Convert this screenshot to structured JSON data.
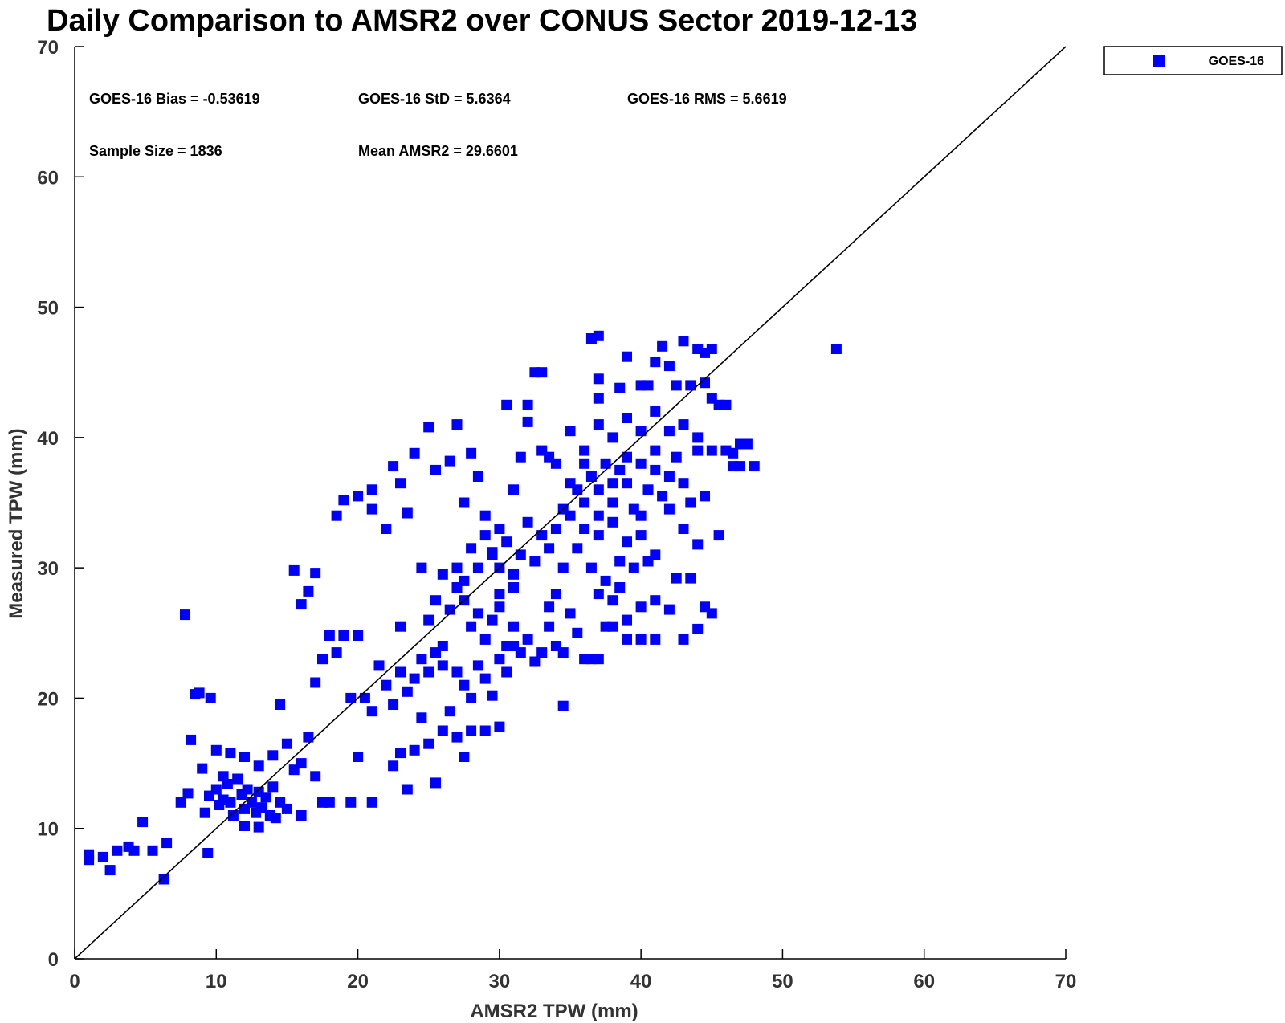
{
  "chart_data": {
    "type": "scatter",
    "title": "Daily Comparison to AMSR2 over CONUS Sector 2019-12-13",
    "xlabel": "AMSR2 TPW (mm)",
    "ylabel": "Measured TPW (mm)",
    "xlim": [
      0,
      70
    ],
    "ylim": [
      0,
      70
    ],
    "xticks": [
      0,
      10,
      20,
      30,
      40,
      50,
      60,
      70
    ],
    "yticks": [
      0,
      10,
      20,
      30,
      40,
      50,
      60,
      70
    ],
    "grid": false,
    "legend_position": "top-right",
    "reference_line": {
      "x": [
        0,
        70
      ],
      "y": [
        0,
        70
      ]
    },
    "stats": {
      "bias": "GOES-16 Bias = -0.53619",
      "std": "GOES-16 StD = 5.6364",
      "rms": "GOES-16 RMS = 5.6619",
      "sample_size": "Sample Size = 1836",
      "mean": "Mean AMSR2 = 29.6601"
    },
    "series": [
      {
        "name": "GOES-16",
        "color": "#0000ff",
        "marker": "square",
        "points": [
          [
            1,
            7.6
          ],
          [
            1,
            8
          ],
          [
            2,
            7.8
          ],
          [
            2.5,
            6.8
          ],
          [
            3,
            8.3
          ],
          [
            3.8,
            8.6
          ],
          [
            4.2,
            8.3
          ],
          [
            4.8,
            10.5
          ],
          [
            5.5,
            8.3
          ],
          [
            6.3,
            6.1
          ],
          [
            6.5,
            8.9
          ],
          [
            7.5,
            12
          ],
          [
            7.8,
            26.4
          ],
          [
            8,
            12.7
          ],
          [
            8.2,
            16.8
          ],
          [
            8.5,
            20.3
          ],
          [
            8.8,
            20.4
          ],
          [
            9,
            14.6
          ],
          [
            9.2,
            11.2
          ],
          [
            9.4,
            8.1
          ],
          [
            9.6,
            20
          ],
          [
            10,
            16
          ],
          [
            10.5,
            14
          ],
          [
            9.5,
            12.5
          ],
          [
            10,
            13
          ],
          [
            10.2,
            11.8
          ],
          [
            10.5,
            12.2
          ],
          [
            10.8,
            13.4
          ],
          [
            11,
            12
          ],
          [
            11.2,
            11
          ],
          [
            11.5,
            13.8
          ],
          [
            11.8,
            12.6
          ],
          [
            12,
            11.5
          ],
          [
            12.2,
            13
          ],
          [
            12.5,
            12
          ],
          [
            12.8,
            11.2
          ],
          [
            13,
            12.8
          ],
          [
            13.2,
            11.6
          ],
          [
            13.5,
            12.4
          ],
          [
            13.8,
            11
          ],
          [
            14,
            13.2
          ],
          [
            14.2,
            10.8
          ],
          [
            14.5,
            12
          ],
          [
            11,
            15.8
          ],
          [
            12,
            15.5
          ],
          [
            13,
            14.8
          ],
          [
            14,
            15.6
          ],
          [
            14.5,
            19.5
          ],
          [
            15,
            16.5
          ],
          [
            15.5,
            14.5
          ],
          [
            16,
            15
          ],
          [
            16.5,
            17
          ],
          [
            17,
            14
          ],
          [
            17.5,
            12
          ],
          [
            18,
            12
          ],
          [
            19.5,
            12
          ],
          [
            21,
            12
          ],
          [
            12,
            10.2
          ],
          [
            13,
            10.1
          ],
          [
            15,
            11.5
          ],
          [
            16,
            11
          ],
          [
            15.5,
            29.8
          ],
          [
            16,
            27.2
          ],
          [
            16.5,
            28.2
          ],
          [
            17,
            29.6
          ],
          [
            17,
            21.2
          ],
          [
            17.5,
            23
          ],
          [
            18,
            24.8
          ],
          [
            18.5,
            23.5
          ],
          [
            19,
            24.8
          ],
          [
            20,
            24.8
          ],
          [
            19.5,
            20
          ],
          [
            20,
            15.5
          ],
          [
            18.5,
            34
          ],
          [
            19,
            35.2
          ],
          [
            20,
            35.5
          ],
          [
            21,
            34.5
          ],
          [
            21,
            36
          ],
          [
            20.5,
            20
          ],
          [
            21,
            19
          ],
          [
            21.5,
            22.5
          ],
          [
            22,
            21
          ],
          [
            22.5,
            19.5
          ],
          [
            23,
            22
          ],
          [
            23.5,
            20.5
          ],
          [
            24,
            21.5
          ],
          [
            24.5,
            23
          ],
          [
            25,
            22
          ],
          [
            25.5,
            23.5
          ],
          [
            26,
            22.5
          ],
          [
            23,
            25.5
          ],
          [
            22.5,
            14.8
          ],
          [
            23,
            15.8
          ],
          [
            23.5,
            13
          ],
          [
            24,
            16
          ],
          [
            24.5,
            18.5
          ],
          [
            25,
            16.5
          ],
          [
            25.5,
            13.5
          ],
          [
            26,
            17.5
          ],
          [
            26.5,
            19
          ],
          [
            27,
            17
          ],
          [
            27.5,
            15.5
          ],
          [
            28,
            17.5
          ],
          [
            29,
            17.5
          ],
          [
            30,
            17.8
          ],
          [
            22,
            33
          ],
          [
            22.5,
            37.8
          ],
          [
            23,
            36.5
          ],
          [
            23.5,
            34.2
          ],
          [
            24,
            38.8
          ],
          [
            24.5,
            30
          ],
          [
            25,
            40.8
          ],
          [
            25.5,
            37.5
          ],
          [
            26,
            29.5
          ],
          [
            26.5,
            38.2
          ],
          [
            27,
            41
          ],
          [
            27.5,
            35
          ],
          [
            28,
            38.8
          ],
          [
            28.5,
            37
          ],
          [
            29,
            34
          ],
          [
            29.5,
            31
          ],
          [
            30,
            33
          ],
          [
            30.5,
            42.5
          ],
          [
            31,
            36
          ],
          [
            31.5,
            38.5
          ],
          [
            32,
            41.2
          ],
          [
            32.5,
            45
          ],
          [
            33,
            39
          ],
          [
            33.5,
            38.5
          ],
          [
            25,
            26
          ],
          [
            25.5,
            27.5
          ],
          [
            26,
            24
          ],
          [
            26.5,
            26.8
          ],
          [
            27,
            28.5
          ],
          [
            27.5,
            27.5
          ],
          [
            28,
            25.5
          ],
          [
            28.5,
            26.5
          ],
          [
            29,
            24.5
          ],
          [
            29.5,
            26
          ],
          [
            30,
            27
          ],
          [
            30.5,
            24
          ],
          [
            31,
            25.5
          ],
          [
            31.5,
            23.5
          ],
          [
            32,
            24.5
          ],
          [
            32.5,
            22.8
          ],
          [
            33,
            23.5
          ],
          [
            33.5,
            25.5
          ],
          [
            34,
            24
          ],
          [
            34.5,
            23.5
          ],
          [
            35,
            26.5
          ],
          [
            35.5,
            25
          ],
          [
            36,
            23
          ],
          [
            36.5,
            23
          ],
          [
            37,
            23
          ],
          [
            34.5,
            19.4
          ],
          [
            27,
            22
          ],
          [
            27.5,
            21
          ],
          [
            28,
            20
          ],
          [
            28.5,
            22.5
          ],
          [
            29,
            21.5
          ],
          [
            29.5,
            20.2
          ],
          [
            30,
            23
          ],
          [
            30.5,
            22
          ],
          [
            31,
            24
          ],
          [
            27,
            30
          ],
          [
            27.5,
            29
          ],
          [
            28,
            31.5
          ],
          [
            28.5,
            30
          ],
          [
            29,
            32.5
          ],
          [
            29.5,
            31.2
          ],
          [
            30,
            30
          ],
          [
            30.5,
            32
          ],
          [
            31,
            29.5
          ],
          [
            31.5,
            31
          ],
          [
            32,
            33.5
          ],
          [
            32.5,
            30.5
          ],
          [
            33,
            32.5
          ],
          [
            33.5,
            31.5
          ],
          [
            34,
            33
          ],
          [
            34.5,
            30
          ],
          [
            35,
            34
          ],
          [
            35.5,
            36
          ],
          [
            36,
            35
          ],
          [
            36.5,
            37
          ],
          [
            37,
            36
          ],
          [
            37.5,
            38
          ],
          [
            38,
            35
          ],
          [
            38.5,
            37.5
          ],
          [
            39,
            36.5
          ],
          [
            39.5,
            34.5
          ],
          [
            40,
            38
          ],
          [
            40.5,
            36
          ],
          [
            41,
            39
          ],
          [
            41.5,
            35.5
          ],
          [
            42,
            37
          ],
          [
            42.5,
            38.5
          ],
          [
            43,
            36.5
          ],
          [
            43.5,
            35
          ],
          [
            44,
            39
          ],
          [
            44.5,
            35.5
          ],
          [
            35,
            40.5
          ],
          [
            36,
            39
          ],
          [
            37,
            41
          ],
          [
            38,
            40
          ],
          [
            39,
            41.5
          ],
          [
            40,
            40.5
          ],
          [
            41,
            42
          ],
          [
            42,
            40.5
          ],
          [
            43,
            41
          ],
          [
            44,
            40
          ],
          [
            36,
            33
          ],
          [
            37,
            32.5
          ],
          [
            38,
            33.5
          ],
          [
            39,
            32
          ],
          [
            40,
            32.5
          ],
          [
            41,
            31
          ],
          [
            36,
            38
          ],
          [
            37,
            34
          ],
          [
            38,
            36.5
          ],
          [
            39,
            38.5
          ],
          [
            40,
            34
          ],
          [
            41,
            37.5
          ],
          [
            42,
            34.5
          ],
          [
            35.5,
            31.5
          ],
          [
            36.5,
            30
          ],
          [
            37.5,
            29
          ],
          [
            38.5,
            30.5
          ],
          [
            39.5,
            30
          ],
          [
            40.5,
            30.5
          ],
          [
            37,
            28
          ],
          [
            38,
            27.5
          ],
          [
            39,
            26
          ],
          [
            40,
            27
          ],
          [
            41,
            27.5
          ],
          [
            38,
            25.5
          ],
          [
            39,
            24.5
          ],
          [
            40,
            24.5
          ],
          [
            41,
            24.5
          ],
          [
            42,
            26.8
          ],
          [
            43,
            24.5
          ],
          [
            44,
            25.3
          ],
          [
            44.5,
            27
          ],
          [
            45,
            26.5
          ],
          [
            37.5,
            25.5
          ],
          [
            38.5,
            28.5
          ],
          [
            36.5,
            47.6
          ],
          [
            37,
            47.8
          ],
          [
            39,
            46.2
          ],
          [
            40,
            44
          ],
          [
            41,
            45.8
          ],
          [
            41.5,
            47
          ],
          [
            42,
            45.5
          ],
          [
            42.5,
            44
          ],
          [
            43,
            47.4
          ],
          [
            43.5,
            44
          ],
          [
            44,
            46.8
          ],
          [
            44.5,
            46.5
          ],
          [
            45,
            46.8
          ],
          [
            44.5,
            44.2
          ],
          [
            45,
            43
          ],
          [
            45.5,
            42.5
          ],
          [
            46,
            42.5
          ],
          [
            45,
            39
          ],
          [
            46,
            39
          ],
          [
            46.5,
            38.8
          ],
          [
            47,
            39.5
          ],
          [
            47.5,
            39.5
          ],
          [
            46.5,
            37.8
          ],
          [
            47,
            37.8
          ],
          [
            48,
            37.8
          ],
          [
            44,
            31.8
          ],
          [
            45.5,
            32.5
          ],
          [
            42.5,
            29.2
          ],
          [
            43.5,
            29.2
          ],
          [
            43,
            33
          ],
          [
            37,
            44.5
          ],
          [
            37,
            43
          ],
          [
            38.5,
            43.8
          ],
          [
            40.5,
            44
          ],
          [
            53.8,
            46.8
          ],
          [
            32,
            42.5
          ],
          [
            33,
            45
          ],
          [
            34,
            38
          ],
          [
            34.5,
            34.5
          ],
          [
            35,
            36.5
          ],
          [
            34,
            28
          ],
          [
            33.5,
            27
          ],
          [
            31,
            28.5
          ],
          [
            30,
            28
          ]
        ]
      }
    ]
  }
}
